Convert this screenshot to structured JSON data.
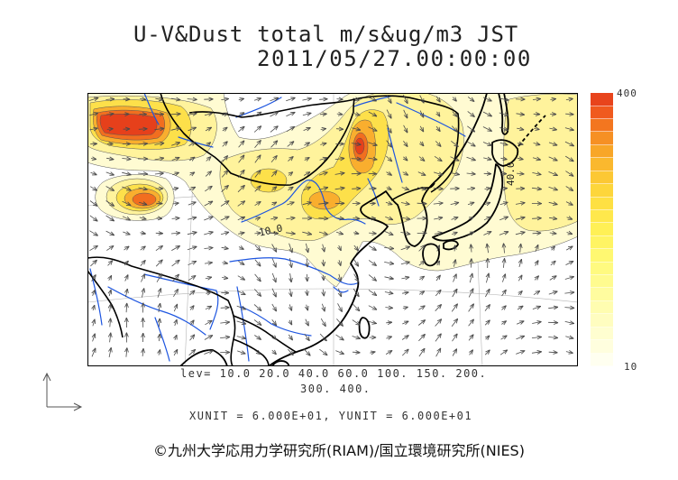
{
  "title": {
    "line1": "U-V&Dust total m/s&ug/m3 JST",
    "line2": "2011/05/27.00:00:00"
  },
  "map": {
    "contour_labels": {
      "a": "10.0",
      "b": "40.0"
    },
    "colors": {
      "coastline": "#000000",
      "border": "#000000",
      "river": "#1d55e0",
      "wind_arrow": "#4a4a4a",
      "grid": "#b5b5b5",
      "contour": "#555555",
      "frame": "#000000"
    },
    "dust_fill_colors": [
      "#fffbd2",
      "#fff39c",
      "#fde04a",
      "#f9ae2e",
      "#f26e1f",
      "#e6401b"
    ]
  },
  "colorbar": {
    "top_label": "400",
    "bottom_label": "10",
    "colors": [
      "#fffff0",
      "#fffede",
      "#fffed0",
      "#fffdc0",
      "#fffdb0",
      "#fffc9f",
      "#fffb8f",
      "#fffa80",
      "#fff871",
      "#fff463",
      "#fff056",
      "#ffe84c",
      "#fee042",
      "#fdd63b",
      "#fcc834",
      "#fab82e",
      "#f8a628",
      "#f69024",
      "#f3761f",
      "#f05a1e",
      "#e8441c"
    ]
  },
  "levels": {
    "line1": "lev= 10.0 20.0 40.0 60.0 100. 150. 200.",
    "line2": "300. 400."
  },
  "units": "XUNIT = 6.000E+01, YUNIT = 6.000E+01",
  "copyright": "©九州大学応用力学研究所(RIAM)/国立環境研究所(NIES)"
}
